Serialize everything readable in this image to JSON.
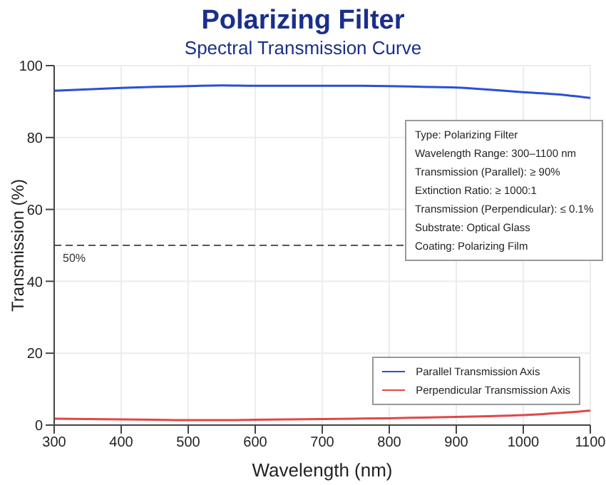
{
  "chart_data": {
    "type": "line",
    "title": "Polarizing Filter",
    "subtitle": "Spectral Transmission Curve",
    "xlabel": "Wavelength (nm)",
    "ylabel": "Transmission (%)",
    "x": [
      300,
      350,
      400,
      450,
      500,
      550,
      600,
      650,
      700,
      750,
      800,
      850,
      900,
      950,
      1000,
      1050,
      1100
    ],
    "series": [
      {
        "name": "Parallel Transmission Axis",
        "color": "#2b4fd8",
        "values": [
          93,
          93.4,
          93.8,
          94.1,
          94.3,
          94.5,
          94.4,
          94.4,
          94.4,
          94.4,
          94.3,
          94.1,
          93.9,
          93.3,
          92.6,
          92,
          91
        ]
      },
      {
        "name": "Perpendicular Transmission Axis",
        "color": "#e04848",
        "values": [
          1.8,
          1.7,
          1.6,
          1.5,
          1.4,
          1.4,
          1.5,
          1.6,
          1.7,
          1.8,
          1.9,
          2.1,
          2.3,
          2.5,
          2.8,
          3.3,
          4
        ]
      }
    ],
    "xlim": [
      300,
      1100
    ],
    "xticks": [
      300,
      400,
      500,
      600,
      700,
      800,
      900,
      1000,
      1100
    ],
    "ylim": [
      0,
      100
    ],
    "yticks": [
      0,
      20,
      40,
      60,
      80,
      100
    ],
    "ref_lines": [
      {
        "axis": "y",
        "value": 50,
        "label": "50%",
        "line_style": "dashed",
        "color": "#555555"
      }
    ],
    "annotations": [
      "Type: Polarizing Filter",
      "Wavelength Range: 300–1100 nm",
      "Transmission (Parallel): ≥ 90%",
      "Extinction Ratio: ≥ 1000:1",
      "Transmission (Perpendicular): ≤ 0.1%",
      "Substrate: Optical Glass",
      "Coating:  Polarizing Film"
    ],
    "grid": true,
    "legend": "bottom right",
    "marker": "none",
    "line_style": "solid"
  }
}
